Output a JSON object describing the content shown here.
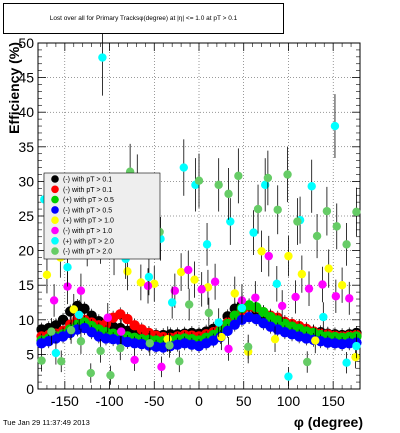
{
  "canvas": {
    "background": "#ffffff",
    "frame_color": "#000000"
  },
  "title": "Lost over all for Primary Tracksφ(degree) at |η| <= 1.0 at pT > 0.1",
  "footer": "Tue Jan 29 11:37:49 2013",
  "chart_data": {
    "type": "scatter",
    "title": "Lost over all for Primary Tracksφ(degree) at |η| <= 1.0 at pT > 0.1",
    "xlabel": "φ (degree)",
    "ylabel": "Efficiency (%)",
    "xlim": [
      -180,
      180
    ],
    "ylim": [
      0,
      50
    ],
    "x_ticks": [
      -150,
      -100,
      -50,
      0,
      50,
      100,
      150
    ],
    "y_ticks": [
      0,
      5,
      10,
      15,
      20,
      25,
      30,
      35,
      40,
      45,
      50
    ],
    "grid": true,
    "legend_position": "upper-left",
    "series": [
      {
        "name": "(-) with pT > 0.1",
        "color": "#000000",
        "marker": "circle",
        "x": [
          -176,
          -168,
          -160,
          -152,
          -144,
          -136,
          -128,
          -120,
          -112,
          -104,
          -96,
          -88,
          -80,
          -72,
          -64,
          -56,
          -48,
          -40,
          -32,
          -24,
          -16,
          -8,
          0,
          8,
          16,
          24,
          32,
          40,
          48,
          56,
          64,
          72,
          80,
          88,
          96,
          104,
          112,
          120,
          128,
          136,
          144,
          152,
          160,
          168,
          176
        ],
        "y": [
          8.6,
          8.8,
          9.2,
          10.0,
          11.2,
          12.0,
          11.6,
          10.6,
          9.8,
          9.3,
          9.0,
          8.8,
          8.4,
          8.2,
          8.1,
          8.0,
          7.8,
          7.8,
          7.9,
          7.9,
          8.0,
          8.1,
          8.0,
          8.3,
          8.7,
          9.2,
          10.5,
          11.6,
          12.2,
          11.9,
          11.4,
          10.8,
          10.3,
          9.8,
          9.3,
          9.0,
          8.8,
          8.5,
          8.3,
          8.2,
          8.0,
          7.9,
          7.8,
          7.9,
          8.1
        ]
      },
      {
        "name": "(-) with pT > 0.1",
        "color": "#ff0000",
        "marker": "circle",
        "x": [
          -176,
          -168,
          -160,
          -152,
          -144,
          -136,
          -128,
          -120,
          -112,
          -104,
          -96,
          -88,
          -80,
          -72,
          -64,
          -56,
          -48,
          -40,
          -32,
          -24,
          -16,
          -8,
          0,
          8,
          16,
          24,
          32,
          40,
          48,
          56,
          64,
          72,
          80,
          88,
          96,
          104,
          112,
          120,
          128,
          136,
          144,
          152,
          160,
          168,
          176
        ],
        "y": [
          7.6,
          7.8,
          8.0,
          8.4,
          9.3,
          10.1,
          10.0,
          9.6,
          9.2,
          9.4,
          10.3,
          10.8,
          10.1,
          9.2,
          8.6,
          8.1,
          7.7,
          7.5,
          7.4,
          7.6,
          7.8,
          7.7,
          7.6,
          7.9,
          8.2,
          8.8,
          9.6,
          10.6,
          11.4,
          11.9,
          11.7,
          11.1,
          10.6,
          10.3,
          9.7,
          9.4,
          9.1,
          8.7,
          8.3,
          8.0,
          7.9,
          7.7,
          7.6,
          7.7,
          7.8
        ]
      },
      {
        "name": "(+) with pT > 0.5",
        "color": "#00cc00",
        "marker": "circle",
        "x": [
          -176,
          -168,
          -160,
          -152,
          -144,
          -136,
          -128,
          -120,
          -112,
          -104,
          -96,
          -88,
          -80,
          -72,
          -64,
          -56,
          -48,
          -40,
          -32,
          -24,
          -16,
          -8,
          0,
          8,
          16,
          24,
          32,
          40,
          48,
          56,
          64,
          72,
          80,
          88,
          96,
          104,
          112,
          120,
          128,
          136,
          144,
          152,
          160,
          168,
          176
        ],
        "y": [
          7.0,
          7.3,
          7.6,
          7.9,
          8.6,
          9.3,
          9.6,
          9.1,
          8.6,
          8.2,
          8.0,
          7.9,
          7.6,
          7.4,
          7.2,
          7.1,
          7.0,
          6.9,
          7.0,
          7.2,
          7.3,
          7.2,
          7.0,
          7.4,
          7.8,
          8.4,
          9.4,
          10.6,
          11.7,
          12.1,
          11.8,
          11.1,
          10.4,
          9.9,
          9.4,
          9.0,
          8.7,
          8.3,
          8.1,
          7.8,
          7.6,
          7.5,
          7.4,
          7.5,
          7.6
        ]
      },
      {
        "name": "(-) with pT > 0.5",
        "color": "#0000ff",
        "marker": "circle",
        "x": [
          -176,
          -168,
          -160,
          -152,
          -144,
          -136,
          -128,
          -120,
          -112,
          -104,
          -96,
          -88,
          -80,
          -72,
          -64,
          -56,
          -48,
          -40,
          -32,
          -24,
          -16,
          -8,
          0,
          8,
          16,
          24,
          32,
          40,
          48,
          56,
          64,
          72,
          80,
          88,
          96,
          104,
          112,
          120,
          128,
          136,
          144,
          152,
          160,
          168,
          176
        ],
        "y": [
          6.6,
          6.9,
          7.3,
          7.6,
          8.1,
          8.6,
          8.8,
          8.2,
          7.6,
          7.3,
          7.2,
          7.0,
          6.8,
          6.6,
          6.5,
          6.3,
          6.1,
          6.0,
          6.2,
          6.4,
          6.6,
          6.4,
          6.2,
          6.6,
          7.0,
          7.5,
          8.4,
          9.3,
          10.0,
          10.4,
          10.1,
          9.5,
          9.0,
          8.6,
          8.2,
          7.9,
          7.6,
          7.3,
          7.1,
          6.9,
          6.7,
          6.6,
          6.5,
          6.6,
          6.7
        ]
      },
      {
        "name": "(+) with pT > 1.0",
        "color": "#ffff00",
        "marker": "circle",
        "x": [
          -170,
          -155,
          -140,
          -125,
          -110,
          -95,
          -80,
          -65,
          -50,
          -35,
          -20,
          -5,
          10,
          25,
          40,
          55,
          70,
          85,
          100,
          115,
          130,
          145,
          160,
          175
        ],
        "y": [
          16.5,
          19.0,
          11.5,
          20.8,
          21.2,
          19.4,
          17.0,
          15.4,
          15.2,
          7.2,
          16.9,
          15.8,
          14.7,
          7.5,
          13.8,
          5.4,
          19.9,
          7.2,
          19.2,
          16.6,
          7.0,
          17.4,
          15.0,
          4.6
        ]
      },
      {
        "name": "(-) with pT > 1.0",
        "color": "#ff00ff",
        "marker": "circle",
        "x": [
          -162,
          -147,
          -132,
          -117,
          -102,
          -87,
          -72,
          -57,
          -42,
          -27,
          -12,
          3,
          18,
          33,
          48,
          63,
          78,
          93,
          108,
          123,
          138,
          153,
          168
        ],
        "y": [
          12.8,
          14.8,
          14.2,
          22.5,
          10.3,
          8.3,
          4.2,
          14.9,
          3.2,
          14.2,
          17.2,
          14.4,
          15.5,
          5.8,
          12.8,
          13.2,
          19.2,
          12.0,
          13.3,
          14.5,
          15.1,
          13.4,
          13.1
        ]
      },
      {
        "name": "(+) with pT > 2.0",
        "color": "#00ffff",
        "marker": "circle",
        "x": [
          -173,
          -160,
          -147,
          -134,
          -121,
          -108,
          -95,
          -82,
          -69,
          -56,
          -43,
          -30,
          -17,
          -4,
          9,
          22,
          35,
          48,
          61,
          74,
          87,
          100,
          113,
          126,
          139,
          152,
          165,
          176
        ],
        "y": [
          27.4,
          5.2,
          17.6,
          10.7,
          25.2,
          47.9,
          23.8,
          18.8,
          30.0,
          16.2,
          21.7,
          12.5,
          32.0,
          29.5,
          20.9,
          9.6,
          24.2,
          11.7,
          22.6,
          29.5,
          15.2,
          1.8,
          24.4,
          29.3,
          10.4,
          38.0,
          3.8,
          6.2
        ]
      },
      {
        "name": "(-) with pT > 2.0",
        "color": "#66cc66",
        "marker": "circle",
        "x": [
          -176,
          -165,
          -154,
          -143,
          -132,
          -121,
          -110,
          -99,
          -88,
          -77,
          -66,
          -55,
          -44,
          -33,
          -22,
          -11,
          0,
          11,
          22,
          33,
          44,
          55,
          66,
          77,
          88,
          99,
          110,
          121,
          132,
          143,
          154,
          165,
          176
        ],
        "y": [
          4.1,
          8.3,
          4.0,
          8.5,
          6.9,
          2.3,
          5.5,
          2.0,
          5.9,
          31.4,
          25.7,
          6.6,
          22.7,
          6.3,
          4.0,
          12.2,
          30.1,
          11.0,
          29.5,
          28.2,
          30.8,
          6.1,
          26.0,
          30.5,
          25.9,
          31.0,
          24.2,
          3.9,
          22.1,
          25.7,
          23.5,
          20.9,
          25.6
        ]
      }
    ]
  }
}
